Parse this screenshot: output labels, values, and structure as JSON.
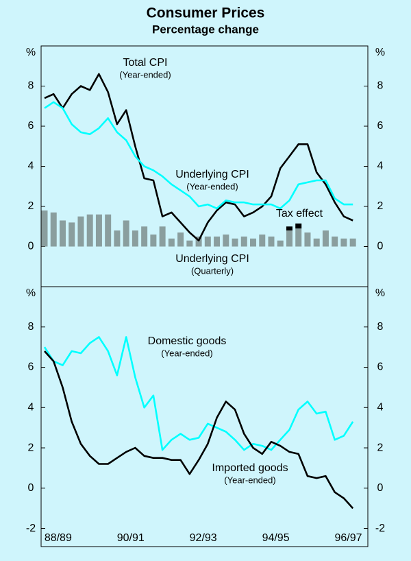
{
  "chart_data": [
    {
      "type": "line",
      "title": "Consumer Prices",
      "subtitle": "Percentage change",
      "ylabel": "%",
      "y2label": "%",
      "categories": [
        null,
        null,
        null,
        null,
        null,
        null,
        null,
        null,
        null,
        null,
        null,
        null,
        null,
        null,
        null,
        null,
        null,
        null,
        null,
        null,
        null,
        null,
        null,
        null,
        null,
        null,
        null,
        null,
        null,
        null,
        null,
        null,
        null,
        null,
        null
      ],
      "ylim": [
        -2,
        10
      ],
      "yticks": [
        0,
        2,
        4,
        6,
        8
      ],
      "y2lim": [
        -2,
        10
      ],
      "y2ticks": [
        0,
        2,
        4,
        6,
        8
      ],
      "grid": false,
      "series": [
        {
          "name": "Total CPI",
          "note": "(Year-ended)",
          "type": "line",
          "color": "#000000",
          "values": [
            7.4,
            7.6,
            6.9,
            7.6,
            8.0,
            7.8,
            8.6,
            7.7,
            6.1,
            6.8,
            5.0,
            3.4,
            3.3,
            1.5,
            1.7,
            1.2,
            0.7,
            0.3,
            1.2,
            1.8,
            2.2,
            2.1,
            1.5,
            1.7,
            2.0,
            2.5,
            3.9,
            4.5,
            5.1,
            5.1,
            3.7,
            3.1,
            2.2,
            1.5,
            1.3
          ]
        },
        {
          "name": "Underlying CPI",
          "note": "(Year-ended)",
          "type": "line",
          "color": "#00ffff",
          "values": [
            6.9,
            7.2,
            6.9,
            6.1,
            5.7,
            5.6,
            5.9,
            6.4,
            5.7,
            5.3,
            4.5,
            4.0,
            3.8,
            3.5,
            3.1,
            2.8,
            2.5,
            2.0,
            2.1,
            1.9,
            2.3,
            2.2,
            2.2,
            2.1,
            2.1,
            2.1,
            1.9,
            2.3,
            3.1,
            3.2,
            3.3,
            3.3,
            2.4,
            2.1,
            2.1
          ]
        },
        {
          "name": "Underlying CPI",
          "note": "(Quarterly)",
          "type": "bar",
          "color": "#8a9e9e",
          "values": [
            1.8,
            1.7,
            1.3,
            1.2,
            1.5,
            1.6,
            1.6,
            1.6,
            0.8,
            1.3,
            0.8,
            1.0,
            0.6,
            1.0,
            0.4,
            0.7,
            0.3,
            0.5,
            0.5,
            0.5,
            0.6,
            0.4,
            0.5,
            0.4,
            0.6,
            0.5,
            0.3,
            0.8,
            0.9,
            0.7,
            0.4,
            0.8,
            0.5,
            0.4,
            0.4
          ]
        },
        {
          "name": "Tax effect",
          "type": "bar",
          "color": "#000000",
          "values": [
            null,
            null,
            null,
            null,
            null,
            null,
            null,
            null,
            null,
            null,
            null,
            null,
            null,
            null,
            null,
            null,
            null,
            null,
            null,
            null,
            null,
            null,
            null,
            null,
            null,
            null,
            null,
            0.2,
            0.25,
            null,
            null,
            null,
            null,
            null,
            null
          ]
        }
      ]
    },
    {
      "type": "line",
      "ylabel": "%",
      "y2label": "%",
      "categories": [
        null,
        "88/89",
        null,
        null,
        null,
        null,
        null,
        null,
        null,
        "90/91",
        null,
        null,
        null,
        null,
        null,
        null,
        null,
        "92/93",
        null,
        null,
        null,
        null,
        null,
        null,
        null,
        "94/95",
        null,
        null,
        null,
        null,
        null,
        null,
        null,
        "96/97",
        null
      ],
      "ylim": [
        -2.9,
        10
      ],
      "yticks": [
        -2,
        0,
        2,
        4,
        6,
        8
      ],
      "y2lim": [
        -2.9,
        10
      ],
      "y2ticks": [
        -2,
        0,
        2,
        4,
        6,
        8
      ],
      "grid": false,
      "series": [
        {
          "name": "Domestic goods",
          "note": "(Year-ended)",
          "type": "line",
          "color": "#00ffff",
          "values": [
            7.0,
            6.3,
            6.1,
            6.8,
            6.7,
            7.2,
            7.5,
            6.8,
            5.6,
            7.5,
            5.5,
            4.0,
            4.6,
            1.9,
            2.4,
            2.7,
            2.4,
            2.5,
            3.2,
            3.0,
            2.8,
            2.4,
            1.9,
            2.2,
            2.1,
            1.9,
            2.4,
            2.9,
            3.9,
            4.3,
            3.7,
            3.8,
            2.4,
            2.6,
            3.3
          ]
        },
        {
          "name": "Imported goods",
          "note": "(Year-ended)",
          "type": "line",
          "color": "#000000",
          "values": [
            6.8,
            6.3,
            5.0,
            3.3,
            2.2,
            1.6,
            1.2,
            1.2,
            1.5,
            1.8,
            2.0,
            1.6,
            1.5,
            1.5,
            1.4,
            1.4,
            0.7,
            1.4,
            2.2,
            3.5,
            4.3,
            3.9,
            2.7,
            2.0,
            1.7,
            2.3,
            2.1,
            1.8,
            1.7,
            0.6,
            0.5,
            0.6,
            -0.2,
            -0.5,
            -1.0
          ]
        }
      ]
    }
  ]
}
